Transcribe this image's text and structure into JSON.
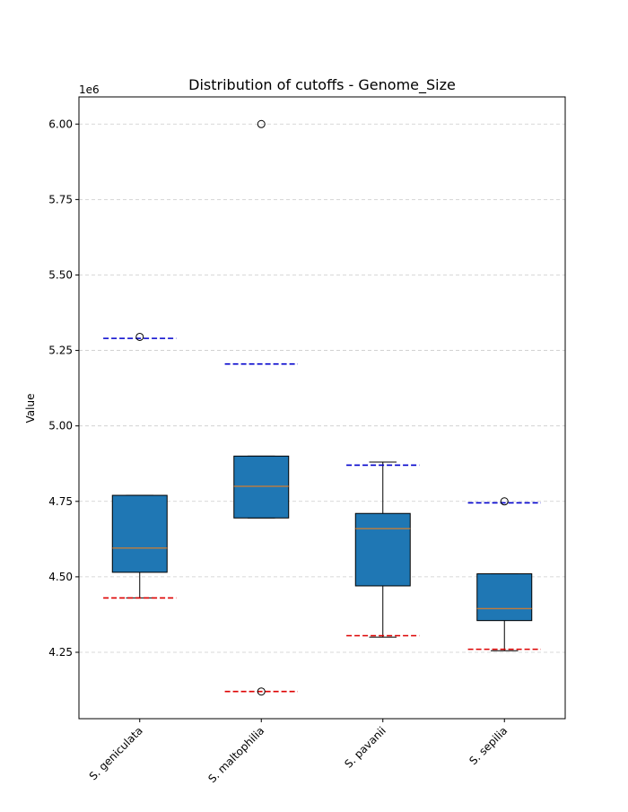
{
  "chart_data": {
    "type": "box",
    "title": "Distribution of cutoffs - Genome_Size",
    "xlabel": "",
    "ylabel": "Value",
    "y_offset_label": "1e6",
    "y_multiplier": 1000000,
    "ylim": [
      4.03,
      6.09
    ],
    "yticks": [
      4.25,
      4.5,
      4.75,
      5.0,
      5.25,
      5.5,
      5.75,
      6.0
    ],
    "ytick_labels": [
      "4.25",
      "4.50",
      "4.75",
      "5.00",
      "5.25",
      "5.50",
      "5.75",
      "6.00"
    ],
    "grid": "y-dashed",
    "categories": [
      "S. geniculata",
      "S. maltophilia",
      "S. pavanii",
      "S. sepilia"
    ],
    "boxes": [
      {
        "whisker_low": 4.43,
        "q1": 4.515,
        "median": 4.595,
        "q3": 4.77,
        "whisker_high": 4.77,
        "outliers": [
          5.295
        ],
        "upper_cutoff": 5.29,
        "lower_cutoff": 4.43
      },
      {
        "whisker_low": 4.695,
        "q1": 4.695,
        "median": 4.8,
        "q3": 4.9,
        "whisker_high": 4.9,
        "outliers": [
          6.0,
          4.12
        ],
        "upper_cutoff": 5.205,
        "lower_cutoff": 4.12
      },
      {
        "whisker_low": 4.3,
        "q1": 4.47,
        "median": 4.66,
        "q3": 4.71,
        "whisker_high": 4.88,
        "outliers": [],
        "upper_cutoff": 4.87,
        "lower_cutoff": 4.305
      },
      {
        "whisker_low": 4.255,
        "q1": 4.355,
        "median": 4.395,
        "q3": 4.51,
        "whisker_high": 4.51,
        "outliers": [
          4.75
        ],
        "upper_cutoff": 4.745,
        "lower_cutoff": 4.26
      }
    ],
    "colors": {
      "box_fill": "#1f77b4",
      "median": "#ff7f0e",
      "upper_cutoff": "#0000cc",
      "lower_cutoff": "#dd0000",
      "grid": "#cccccc"
    }
  }
}
